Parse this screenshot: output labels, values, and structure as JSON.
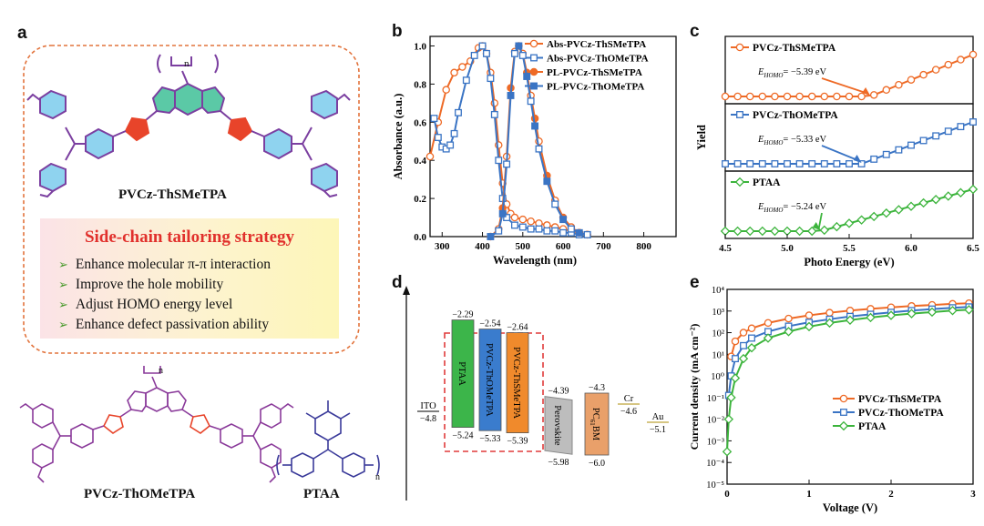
{
  "panels": {
    "a": "a",
    "b": "b",
    "c": "c",
    "d": "d",
    "e": "e"
  },
  "panel_a": {
    "top_molecule_label": "PVCz-ThSMeTPA",
    "bottom_left_label": "PVCz-ThOMeTPA",
    "bottom_right_label": "PTAA",
    "strategy_title": "Side-chain tailoring strategy",
    "strategy_items": [
      "Enhance molecular π-π  interaction",
      "Improve the hole mobility",
      "Adjust HOMO energy level",
      "Enhance defect passivation ability"
    ],
    "bullet": "➢",
    "polymer_n": "n",
    "colors": {
      "box_border": "#e2733c",
      "strategy_title": "#e1302c",
      "bullet": "#4a9a2c",
      "thiophene": "#e8442a",
      "phenyl": "#8fd3ef",
      "bond": "#7b3fa0",
      "carbazole": "#5bc9a6"
    }
  },
  "chart_data": [
    {
      "panel": "b",
      "type": "line",
      "xlabel": "Wavelength (nm)",
      "ylabel": "Absorbance (a.u.)",
      "xlim": [
        270,
        880
      ],
      "ylim": [
        0,
        1.05
      ],
      "xticks": [
        300,
        400,
        500,
        600,
        700,
        800
      ],
      "yticks": [
        "0.0",
        "0.2",
        "0.4",
        "0.6",
        "0.8",
        "1.0"
      ],
      "legend_position": "top-right",
      "series": [
        {
          "name": "Abs-PVCz-ThSMeTPA",
          "color": "#ee6a26",
          "marker": "circle",
          "filled": false,
          "x": [
            270,
            290,
            310,
            330,
            350,
            370,
            390,
            400,
            410,
            420,
            430,
            440,
            450,
            460,
            470,
            480,
            500,
            520,
            540,
            560,
            580,
            600,
            620,
            640,
            660
          ],
          "y": [
            0.42,
            0.6,
            0.77,
            0.86,
            0.89,
            0.92,
            0.99,
            1.0,
            0.96,
            0.86,
            0.7,
            0.48,
            0.28,
            0.17,
            0.12,
            0.1,
            0.09,
            0.08,
            0.07,
            0.06,
            0.05,
            0.04,
            0.03,
            0.02,
            0.01
          ]
        },
        {
          "name": "Abs-PVCz-ThOMeTPA",
          "color": "#3a74c4",
          "marker": "square",
          "filled": false,
          "x": [
            280,
            290,
            300,
            310,
            320,
            330,
            340,
            360,
            380,
            400,
            410,
            420,
            430,
            440,
            450,
            460,
            480,
            500,
            520,
            540,
            560,
            580,
            600,
            620,
            640,
            660
          ],
          "y": [
            0.62,
            0.52,
            0.47,
            0.46,
            0.48,
            0.54,
            0.65,
            0.82,
            0.95,
            1.0,
            0.96,
            0.83,
            0.64,
            0.4,
            0.2,
            0.1,
            0.06,
            0.05,
            0.04,
            0.04,
            0.03,
            0.03,
            0.02,
            0.02,
            0.01,
            0.01
          ]
        },
        {
          "name": "PL-PVCz-ThSMeTPA",
          "color": "#ee6a26",
          "marker": "circle",
          "filled": true,
          "x": [
            420,
            440,
            450,
            460,
            470,
            480,
            490,
            500,
            510,
            520,
            530,
            540,
            560,
            580,
            600,
            620,
            640,
            660
          ],
          "y": [
            0.0,
            0.04,
            0.15,
            0.42,
            0.78,
            0.97,
            1.0,
            0.96,
            0.86,
            0.74,
            0.62,
            0.5,
            0.32,
            0.19,
            0.1,
            0.05,
            0.02,
            0.01
          ]
        },
        {
          "name": "PL-PVCz-ThOMeTPA",
          "color": "#3a74c4",
          "marker": "square",
          "filled": true,
          "x": [
            420,
            440,
            450,
            460,
            470,
            480,
            490,
            500,
            510,
            520,
            530,
            540,
            560,
            580,
            600,
            620,
            640,
            660
          ],
          "y": [
            0.0,
            0.03,
            0.12,
            0.38,
            0.74,
            0.96,
            1.0,
            0.95,
            0.84,
            0.71,
            0.58,
            0.46,
            0.29,
            0.17,
            0.09,
            0.04,
            0.02,
            0.01
          ]
        }
      ]
    },
    {
      "panel": "c",
      "type": "line",
      "xlabel": "Photo Energy (eV)",
      "ylabel": "Yield",
      "xlim": [
        4.5,
        6.5
      ],
      "xticks": [
        "4.5",
        "5.0",
        "5.5",
        "6.0",
        "6.5"
      ],
      "subplots": [
        {
          "name": "PVCz-ThSMeTPA",
          "color": "#ee6a26",
          "marker": "circle",
          "threshold": 5.67,
          "annotation": "E_HOMO = −5.39 eV",
          "ann_sub": "HOMO",
          "ann_value": "= −5.39 eV"
        },
        {
          "name": "PVCz-ThOMeTPA",
          "color": "#3a74c4",
          "marker": "square",
          "threshold": 5.6,
          "annotation": "E_HOMO = −5.33 eV",
          "ann_sub": "HOMO",
          "ann_value": "= −5.33 eV"
        },
        {
          "name": "PTAA",
          "color": "#3cb43c",
          "marker": "diamond",
          "threshold": 5.27,
          "annotation": "E_HOMO = −5.24 eV",
          "ann_sub": "HOMO",
          "ann_value": "= −5.24 eV"
        }
      ]
    },
    {
      "panel": "d",
      "type": "energy-diagram",
      "levels": [
        {
          "name": "ITO",
          "line": true,
          "value": "−4.8",
          "top": -4.8,
          "color": "#555555"
        },
        {
          "name": "PTAA",
          "top": -2.29,
          "bottom": -5.24,
          "top_label": "−2.29",
          "bottom_label": "−5.24",
          "color": "#3cb54a"
        },
        {
          "name": "PVCz-ThOMeTPA",
          "top": -2.54,
          "bottom": -5.33,
          "top_label": "−2.54",
          "bottom_label": "−5.33",
          "color": "#3a7ccd"
        },
        {
          "name": "PVCz-ThSMeTPA",
          "top": -2.64,
          "bottom": -5.39,
          "top_label": "−2.64",
          "bottom_label": "−5.39",
          "color": "#f08a2c"
        },
        {
          "name": "Perovskite",
          "top": -4.39,
          "bottom": -5.98,
          "top_label": "−4.39",
          "bottom_label": "−5.98",
          "color": "#bdbdbd"
        },
        {
          "name": "PC61BM",
          "name_main": "PC",
          "name_sub": "61",
          "name_end": "BM",
          "top": -4.3,
          "bottom": -6.0,
          "top_label": "−4.3",
          "bottom_label": "−6.0",
          "color": "#e9a06a"
        },
        {
          "name": "Cr",
          "line": true,
          "value": "−4.6",
          "top": -4.6,
          "color": "#c9b35a"
        },
        {
          "name": "Au",
          "line": true,
          "value": "−5.1",
          "top": -5.1,
          "color": "#c9b35a"
        }
      ]
    },
    {
      "panel": "e",
      "type": "line",
      "xlabel": "Voltage (V)",
      "ylabel": "Current density (mA cm⁻²)",
      "xlim": [
        0,
        3
      ],
      "ylim_log": [
        -5,
        4
      ],
      "xticks": [
        "0",
        "1",
        "2",
        "3"
      ],
      "yticks": [
        "10⁻⁵",
        "10⁻⁴",
        "10⁻³",
        "10⁻²",
        "10⁻¹",
        "10⁰",
        "10¹",
        "10²",
        "10³",
        "10⁴"
      ],
      "legend_position": "center-right",
      "series": [
        {
          "name": "PVCz-ThSMeTPA",
          "color": "#ee6a26",
          "marker": "circle",
          "x": [
            0.05,
            0.1,
            0.2,
            0.3,
            0.5,
            0.75,
            1.0,
            1.25,
            1.5,
            1.75,
            2.0,
            2.25,
            2.5,
            2.75,
            2.95
          ],
          "y": [
            0.9,
            1.6,
            2.0,
            2.2,
            2.45,
            2.65,
            2.8,
            2.92,
            3.02,
            3.1,
            3.17,
            3.23,
            3.28,
            3.33,
            3.36
          ]
        },
        {
          "name": "PVCz-ThOMeTPA",
          "color": "#3a74c4",
          "marker": "square",
          "x": [
            0.02,
            0.05,
            0.1,
            0.2,
            0.3,
            0.5,
            0.75,
            1.0,
            1.25,
            1.5,
            1.75,
            2.0,
            2.25,
            2.5,
            2.75,
            2.95
          ],
          "y": [
            -0.9,
            0.0,
            0.8,
            1.4,
            1.75,
            2.05,
            2.3,
            2.48,
            2.62,
            2.75,
            2.85,
            2.94,
            3.02,
            3.09,
            3.15,
            3.19
          ]
        },
        {
          "name": "PTAA",
          "color": "#3cb43c",
          "marker": "diamond",
          "x": [
            0.0,
            0.02,
            0.05,
            0.1,
            0.2,
            0.3,
            0.5,
            0.75,
            1.0,
            1.25,
            1.5,
            1.75,
            2.0,
            2.25,
            2.5,
            2.75,
            2.95
          ],
          "y": [
            -3.5,
            -2.0,
            -1.0,
            -0.1,
            0.8,
            1.3,
            1.75,
            2.05,
            2.28,
            2.45,
            2.58,
            2.7,
            2.8,
            2.88,
            2.95,
            3.02,
            3.06
          ]
        }
      ]
    }
  ]
}
